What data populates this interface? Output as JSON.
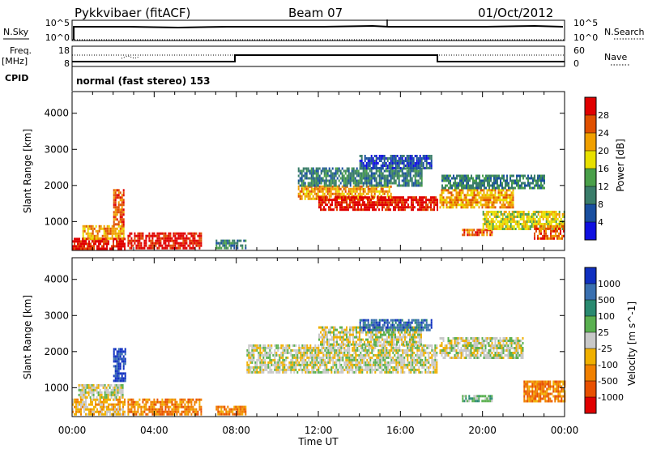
{
  "header": {
    "station": "Pykkvibaer (fitACF)",
    "beam": "Beam 07",
    "date": "01/Oct/2012"
  },
  "nsky_panel": {
    "left_label": "N.Sky",
    "left_ticks": [
      "10^5",
      "10^0"
    ],
    "right_ticks": [
      "10^5",
      "10^0"
    ],
    "right_label": "N.Search"
  },
  "freq_panel": {
    "left_label_1": "Freq.",
    "left_label_2": "[MHz]",
    "left_ticks": [
      "18",
      "8"
    ],
    "right_ticks": [
      "60",
      "0"
    ],
    "right_label": "Nave"
  },
  "cpid_panel": {
    "label": "CPID",
    "mode": "normal (fast stereo) 153"
  },
  "chart_data": [
    {
      "type": "heatmap",
      "name": "power",
      "xlabel": "Time UT",
      "ylabel": "Slant Range [km]",
      "xlim": [
        0,
        24
      ],
      "ylim": [
        200,
        4600
      ],
      "x_ticks": [
        "00:00",
        "04:00",
        "08:00",
        "12:00",
        "16:00",
        "20:00",
        "00:00"
      ],
      "y_ticks": [
        "1000",
        "2000",
        "3000",
        "4000"
      ],
      "colorbar": {
        "label": "Power [dB]",
        "ticks": [
          "4",
          "8",
          "12",
          "16",
          "20",
          "24",
          "28"
        ],
        "colors": [
          "#1010e0",
          "#1a4fa0",
          "#3a7d6a",
          "#4aa04a",
          "#e8e000",
          "#f0a000",
          "#e05000",
          "#e00000"
        ]
      },
      "regions": [
        {
          "t0": 0.0,
          "t1": 2.6,
          "r0": 250,
          "r1": 550,
          "level": 7
        },
        {
          "t0": 0.5,
          "t1": 2.5,
          "r0": 550,
          "r1": 900,
          "level": 5
        },
        {
          "t0": 2.0,
          "t1": 2.5,
          "r0": 900,
          "r1": 1900,
          "level": 6
        },
        {
          "t0": 2.7,
          "t1": 6.3,
          "r0": 250,
          "r1": 700,
          "level": 7
        },
        {
          "t0": 7.0,
          "t1": 8.5,
          "r0": 250,
          "r1": 500,
          "level": 2
        },
        {
          "t0": 11.0,
          "t1": 15.5,
          "r0": 1600,
          "r1": 2000,
          "level": 5
        },
        {
          "t0": 12.0,
          "t1": 17.8,
          "r0": 1350,
          "r1": 1700,
          "level": 7
        },
        {
          "t0": 11.0,
          "t1": 17.0,
          "r0": 2000,
          "r1": 2500,
          "level": 2
        },
        {
          "t0": 14.0,
          "t1": 17.5,
          "r0": 2500,
          "r1": 2850,
          "level": 1
        },
        {
          "t0": 17.9,
          "t1": 21.5,
          "r0": 1400,
          "r1": 1900,
          "level": 5
        },
        {
          "t0": 18.0,
          "t1": 23.0,
          "r0": 1900,
          "r1": 2300,
          "level": 2
        },
        {
          "t0": 19.0,
          "t1": 20.5,
          "r0": 600,
          "r1": 800,
          "level": 6
        },
        {
          "t0": 20.0,
          "t1": 24.0,
          "r0": 800,
          "r1": 1300,
          "level": 4
        },
        {
          "t0": 22.5,
          "t1": 24.0,
          "r0": 500,
          "r1": 900,
          "level": 6
        }
      ]
    },
    {
      "type": "heatmap",
      "name": "velocity",
      "xlabel": "Time UT",
      "ylabel": "Slant Range [km]",
      "xlim": [
        0,
        24
      ],
      "ylim": [
        200,
        4600
      ],
      "x_ticks": [
        "00:00",
        "04:00",
        "08:00",
        "12:00",
        "16:00",
        "20:00",
        "00:00"
      ],
      "y_ticks": [
        "1000",
        "2000",
        "3000",
        "4000"
      ],
      "colorbar": {
        "label": "Velocity [m s^-1]",
        "ticks": [
          "1000",
          "500",
          "100",
          "25",
          "-25",
          "-100",
          "-500",
          "-1000"
        ],
        "colors": [
          "#1030c0",
          "#3a70b0",
          "#2a8a70",
          "#5ab050",
          "#c8c8c8",
          "#f0b000",
          "#f08000",
          "#e85000",
          "#e00000"
        ]
      },
      "regions": [
        {
          "t0": 0.0,
          "t1": 2.6,
          "r0": 250,
          "r1": 700,
          "level": 5
        },
        {
          "t0": 0.3,
          "t1": 2.5,
          "r0": 700,
          "r1": 1100,
          "level": 4
        },
        {
          "t0": 2.0,
          "t1": 2.6,
          "r0": 1200,
          "r1": 2100,
          "level": 0
        },
        {
          "t0": 2.7,
          "t1": 6.3,
          "r0": 250,
          "r1": 700,
          "level": 6
        },
        {
          "t0": 7.0,
          "t1": 8.5,
          "r0": 250,
          "r1": 500,
          "level": 6
        },
        {
          "t0": 8.5,
          "t1": 17.8,
          "r0": 1400,
          "r1": 2200,
          "level": 4
        },
        {
          "t0": 12.0,
          "t1": 17.0,
          "r0": 2200,
          "r1": 2700,
          "level": 4
        },
        {
          "t0": 14.0,
          "t1": 17.5,
          "r0": 2600,
          "r1": 2900,
          "level": 1
        },
        {
          "t0": 17.9,
          "t1": 22.0,
          "r0": 1800,
          "r1": 2400,
          "level": 4
        },
        {
          "t0": 22.0,
          "t1": 24.0,
          "r0": 600,
          "r1": 1200,
          "level": 6
        },
        {
          "t0": 19.0,
          "t1": 20.5,
          "r0": 600,
          "r1": 800,
          "level": 3
        }
      ]
    }
  ]
}
